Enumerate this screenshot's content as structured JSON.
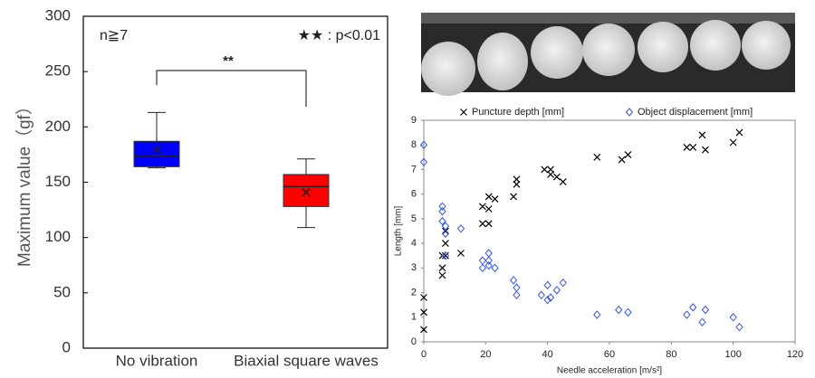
{
  "chart_data": [
    {
      "type": "box",
      "y_label": "Maximum value（gf）",
      "annotations": [
        "n≧7",
        "★★ : p<0.01",
        "**"
      ],
      "categories": [
        "No vibration",
        "Biaxial square waves"
      ],
      "boxes": [
        {
          "whisker_low": 163,
          "q1": 164,
          "median": 174,
          "q3": 187,
          "whisker_high": 213,
          "mean": 180,
          "color": "#0000ff"
        },
        {
          "whisker_low": 109,
          "q1": 128,
          "median": 146,
          "q3": 157,
          "whisker_high": 171,
          "mean": 141,
          "color": "#ff0000"
        }
      ],
      "ylim": [
        0,
        300
      ],
      "yticks": [
        0,
        50,
        100,
        150,
        200,
        250,
        300
      ]
    },
    {
      "type": "scatter",
      "x_label": "Needle acceleration [m/s²]",
      "y_label": "Length [mm]",
      "legend": "top",
      "xlim": [
        0,
        120
      ],
      "xticks": [
        0,
        20,
        40,
        60,
        80,
        100,
        120
      ],
      "ylim": [
        0,
        9
      ],
      "yticks": [
        0,
        1,
        2,
        3,
        4,
        5,
        6,
        7,
        8,
        9
      ],
      "series": [
        {
          "name": "Puncture depth [mm]",
          "color": "#000000",
          "marker": "x",
          "x": [
            0,
            0,
            0,
            6,
            6,
            6,
            7,
            7,
            7,
            12,
            19,
            19,
            21,
            21,
            21,
            23,
            29,
            30,
            30,
            39,
            41,
            41,
            43,
            45,
            56,
            64,
            66,
            85,
            87,
            90,
            91,
            100,
            102
          ],
          "values": [
            0.5,
            1.2,
            1.8,
            2.7,
            3.0,
            3.5,
            3.5,
            4.0,
            4.5,
            3.6,
            4.8,
            5.5,
            4.8,
            5.4,
            5.9,
            5.8,
            5.9,
            6.4,
            6.6,
            7.0,
            6.8,
            7.0,
            6.7,
            6.5,
            7.5,
            7.4,
            7.6,
            7.9,
            7.9,
            8.4,
            7.8,
            8.1,
            8.5
          ]
        },
        {
          "name": "Object displacement [mm]",
          "color": "#3355ee",
          "marker": "diamond",
          "x": [
            0,
            0,
            6,
            6,
            6,
            7,
            7,
            7,
            12,
            19,
            19,
            21,
            21,
            21,
            23,
            29,
            30,
            30,
            38,
            40,
            41,
            40,
            43,
            45,
            56,
            63,
            66,
            85,
            87,
            90,
            91,
            100,
            102
          ],
          "values": [
            8.0,
            7.3,
            5.5,
            5.3,
            4.9,
            4.7,
            4.4,
            3.5,
            4.6,
            3.3,
            3.0,
            3.3,
            3.6,
            3.1,
            3.0,
            2.5,
            2.2,
            1.9,
            1.9,
            1.7,
            1.8,
            2.3,
            2.1,
            2.4,
            1.1,
            1.3,
            1.2,
            1.1,
            1.4,
            0.8,
            1.3,
            1.0,
            0.6
          ]
        }
      ]
    }
  ]
}
